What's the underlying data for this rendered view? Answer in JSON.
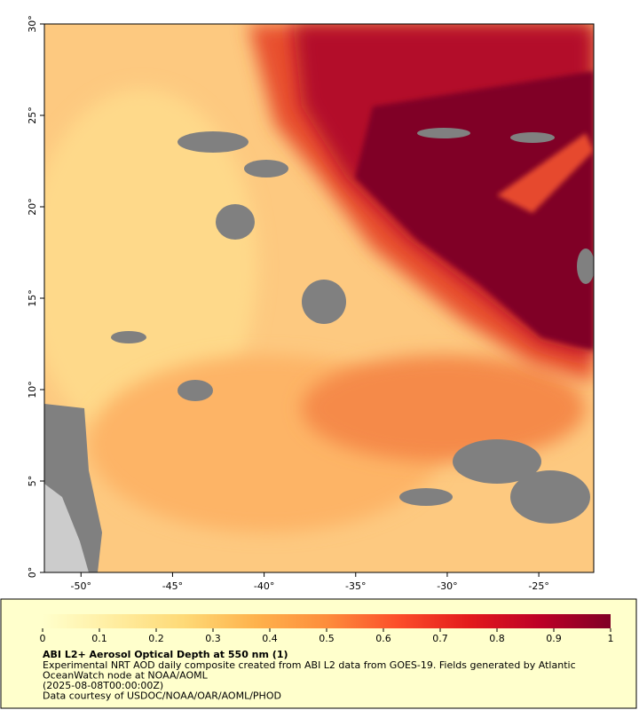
{
  "map": {
    "xlim": [
      -52,
      -22
    ],
    "ylim": [
      0,
      30
    ],
    "xticks": [
      {
        "value": -50,
        "label": "-50°"
      },
      {
        "value": -45,
        "label": "-45°"
      },
      {
        "value": -40,
        "label": "-40°"
      },
      {
        "value": -35,
        "label": "-35°"
      },
      {
        "value": -30,
        "label": "-30°"
      },
      {
        "value": -25,
        "label": "-25°"
      }
    ],
    "yticks": [
      {
        "value": 0,
        "label": "0°"
      },
      {
        "value": 5,
        "label": "5°"
      },
      {
        "value": 10,
        "label": "10°"
      },
      {
        "value": 15,
        "label": "15°"
      },
      {
        "value": 20,
        "label": "20°"
      },
      {
        "value": 25,
        "label": "25°"
      },
      {
        "value": 30,
        "label": "30°"
      }
    ]
  },
  "colorbar": {
    "lim": [
      0,
      1
    ],
    "ticks": [
      0,
      0.1,
      0.2,
      0.3,
      0.4,
      0.5,
      0.6,
      0.7,
      0.8,
      0.9,
      1
    ],
    "colors": [
      "#ffffcc",
      "#ffeda0",
      "#fed976",
      "#feb24c",
      "#fd8d3c",
      "#fc4e2a",
      "#e31a1c",
      "#bd0026",
      "#800026"
    ]
  },
  "caption": {
    "title": "ABI L2+ Aerosol Optical Depth at 550 nm (1)",
    "lines": [
      "Experimental NRT AOD daily composite created from ABI L2 data from GOES-19. Fields generated by Atlantic",
      "OceanWatch node at NOAA/AOML",
      "(2025-08-08T00:00:00Z)",
      "Data courtesy of USDOC/NOAA/OAR/AOML/PHOD"
    ]
  }
}
